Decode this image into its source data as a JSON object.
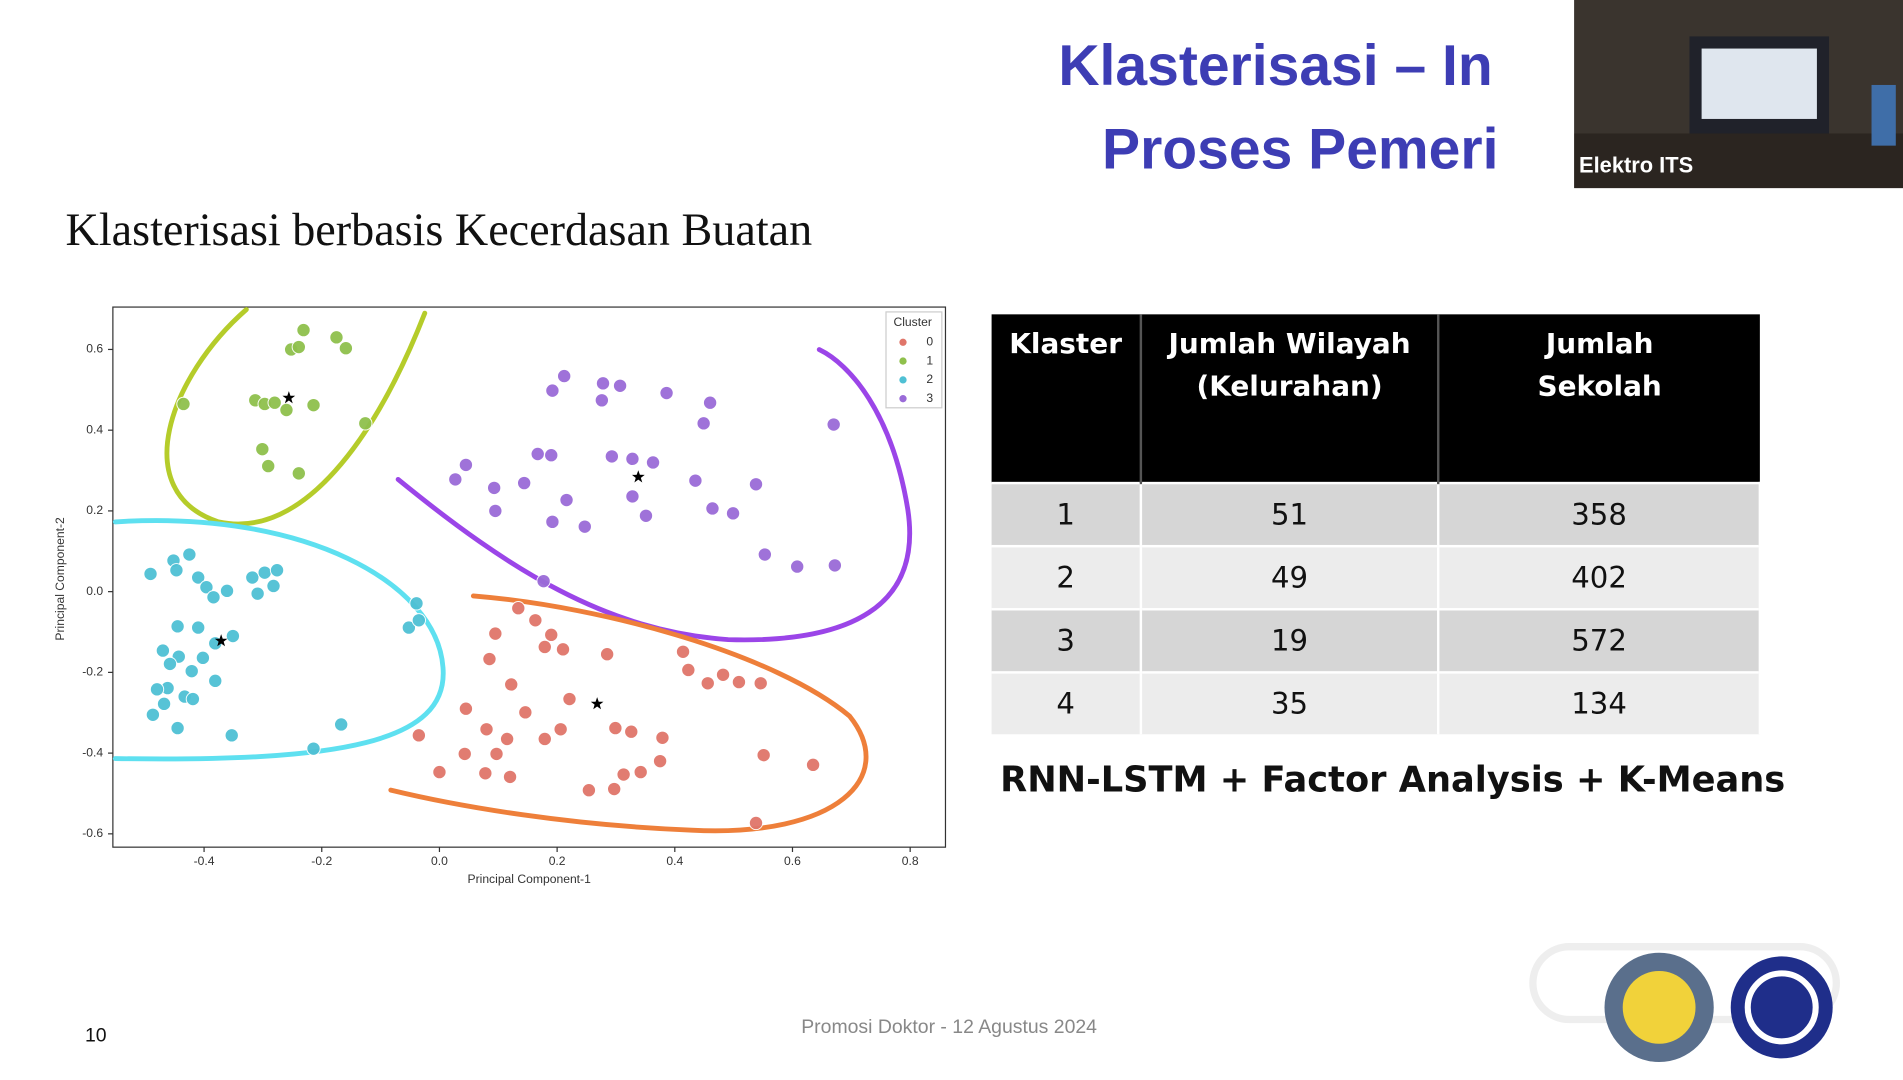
{
  "slide": {
    "title_line1": "Klasterisasi – In",
    "title_line2": "Proses Pemeri",
    "video_label": "Elektro ITS",
    "subtitle": "Klasterisasi berbasis Kecerdasan Buatan",
    "method": "RNN-LSTM + Factor Analysis + K-Means",
    "footer": "Promosi Doktor - 12 Agustus 2024",
    "page_number": "10"
  },
  "chart_data": {
    "type": "scatter",
    "xlabel": "Principal Component-1",
    "ylabel": "Principal Component-2",
    "xlim": [
      -0.555,
      0.86
    ],
    "ylim": [
      -0.633,
      0.705
    ],
    "xticks": [
      -0.4,
      -0.2,
      {
        "value": 0,
        "label": "0.0"
      },
      0.2,
      0.4,
      0.6,
      0.8
    ],
    "yticks": [
      -0.6,
      -0.4,
      -0.2,
      {
        "value": 0,
        "label": "0.0"
      },
      0.2,
      0.4,
      0.6
    ],
    "legend_title": "Cluster",
    "legend": "upper right",
    "series": [
      {
        "name": "0",
        "color": "#e0766a",
        "x": [
          0.134,
          0.095,
          0.163,
          0.19,
          0.179,
          0.21,
          0.085,
          0.122,
          0.285,
          0.414,
          0.423,
          0.456,
          0.482,
          0.509,
          0.546,
          0.045,
          0.146,
          0.221,
          -0.035,
          0.08,
          0.206,
          0.115,
          0.179,
          0.299,
          0.326,
          0.379,
          0.043,
          0.097,
          0.0,
          0.078,
          0.12,
          0.313,
          0.342,
          0.375,
          0.551,
          0.635,
          0.254,
          0.297,
          0.538
        ],
        "values": [
          -0.041,
          -0.104,
          -0.071,
          -0.107,
          -0.137,
          -0.143,
          -0.167,
          -0.23,
          -0.155,
          -0.149,
          -0.194,
          -0.227,
          -0.206,
          -0.224,
          -0.227,
          -0.29,
          -0.299,
          -0.266,
          -0.356,
          -0.341,
          -0.341,
          -0.365,
          -0.365,
          -0.338,
          -0.347,
          -0.362,
          -0.402,
          -0.402,
          -0.447,
          -0.45,
          -0.459,
          -0.453,
          -0.447,
          -0.42,
          -0.405,
          -0.429,
          -0.492,
          -0.489,
          -0.573
        ]
      },
      {
        "name": "1",
        "color": "#8fc04c",
        "x": [
          -0.231,
          -0.252,
          -0.239,
          -0.175,
          -0.159,
          -0.435,
          -0.313,
          -0.297,
          -0.28,
          -0.26,
          -0.214,
          -0.126,
          -0.301,
          -0.291,
          -0.239
        ],
        "values": [
          0.648,
          0.6,
          0.606,
          0.63,
          0.603,
          0.465,
          0.474,
          0.465,
          0.468,
          0.45,
          0.462,
          0.417,
          0.353,
          0.311,
          0.293
        ]
      },
      {
        "name": "2",
        "color": "#4fc0d4",
        "x": [
          -0.491,
          -0.452,
          -0.425,
          -0.447,
          -0.41,
          -0.396,
          -0.384,
          -0.361,
          -0.318,
          -0.297,
          -0.276,
          -0.309,
          -0.282,
          -0.039,
          -0.052,
          -0.035,
          -0.445,
          -0.41,
          -0.351,
          -0.381,
          -0.47,
          -0.443,
          -0.458,
          -0.402,
          -0.421,
          -0.381,
          -0.462,
          -0.48,
          -0.433,
          -0.419,
          -0.468,
          -0.487,
          -0.445,
          -0.353,
          -0.167,
          -0.214
        ],
        "values": [
          0.044,
          0.077,
          0.092,
          0.053,
          0.035,
          0.011,
          -0.014,
          0.002,
          0.035,
          0.047,
          0.053,
          -0.005,
          0.014,
          -0.029,
          -0.089,
          -0.071,
          -0.086,
          -0.089,
          -0.11,
          -0.128,
          -0.146,
          -0.161,
          -0.179,
          -0.164,
          -0.197,
          -0.221,
          -0.239,
          -0.242,
          -0.26,
          -0.266,
          -0.278,
          -0.305,
          -0.338,
          -0.356,
          -0.329,
          -0.389
        ]
      },
      {
        "name": "3",
        "color": "#9a6bd8",
        "x": [
          0.212,
          0.192,
          0.278,
          0.307,
          0.386,
          0.46,
          0.276,
          0.449,
          0.67,
          0.167,
          0.19,
          0.293,
          0.328,
          0.363,
          0.045,
          0.027,
          0.093,
          0.144,
          0.216,
          0.328,
          0.435,
          0.538,
          0.095,
          0.192,
          0.247,
          0.351,
          0.464,
          0.499,
          0.553,
          0.608,
          0.672,
          0.177
        ],
        "values": [
          0.534,
          0.498,
          0.516,
          0.51,
          0.492,
          0.468,
          0.474,
          0.417,
          0.414,
          0.341,
          0.338,
          0.335,
          0.329,
          0.32,
          0.314,
          0.278,
          0.257,
          0.269,
          0.227,
          0.236,
          0.275,
          0.266,
          0.2,
          0.173,
          0.161,
          0.188,
          0.206,
          0.194,
          0.092,
          0.062,
          0.065,
          0.026
        ]
      }
    ],
    "centroids": {
      "x": [
        -0.256,
        0.338,
        -0.371,
        0.268
      ],
      "y": [
        0.48,
        0.284,
        -0.122,
        -0.278
      ]
    }
  },
  "table": {
    "headers": [
      "Klaster",
      "Jumlah Wilayah (Kelurahan)",
      "Jumlah Sekolah"
    ],
    "rows": [
      [
        1,
        51,
        358
      ],
      [
        2,
        49,
        402
      ],
      [
        3,
        19,
        572
      ],
      [
        4,
        35,
        134
      ]
    ]
  }
}
